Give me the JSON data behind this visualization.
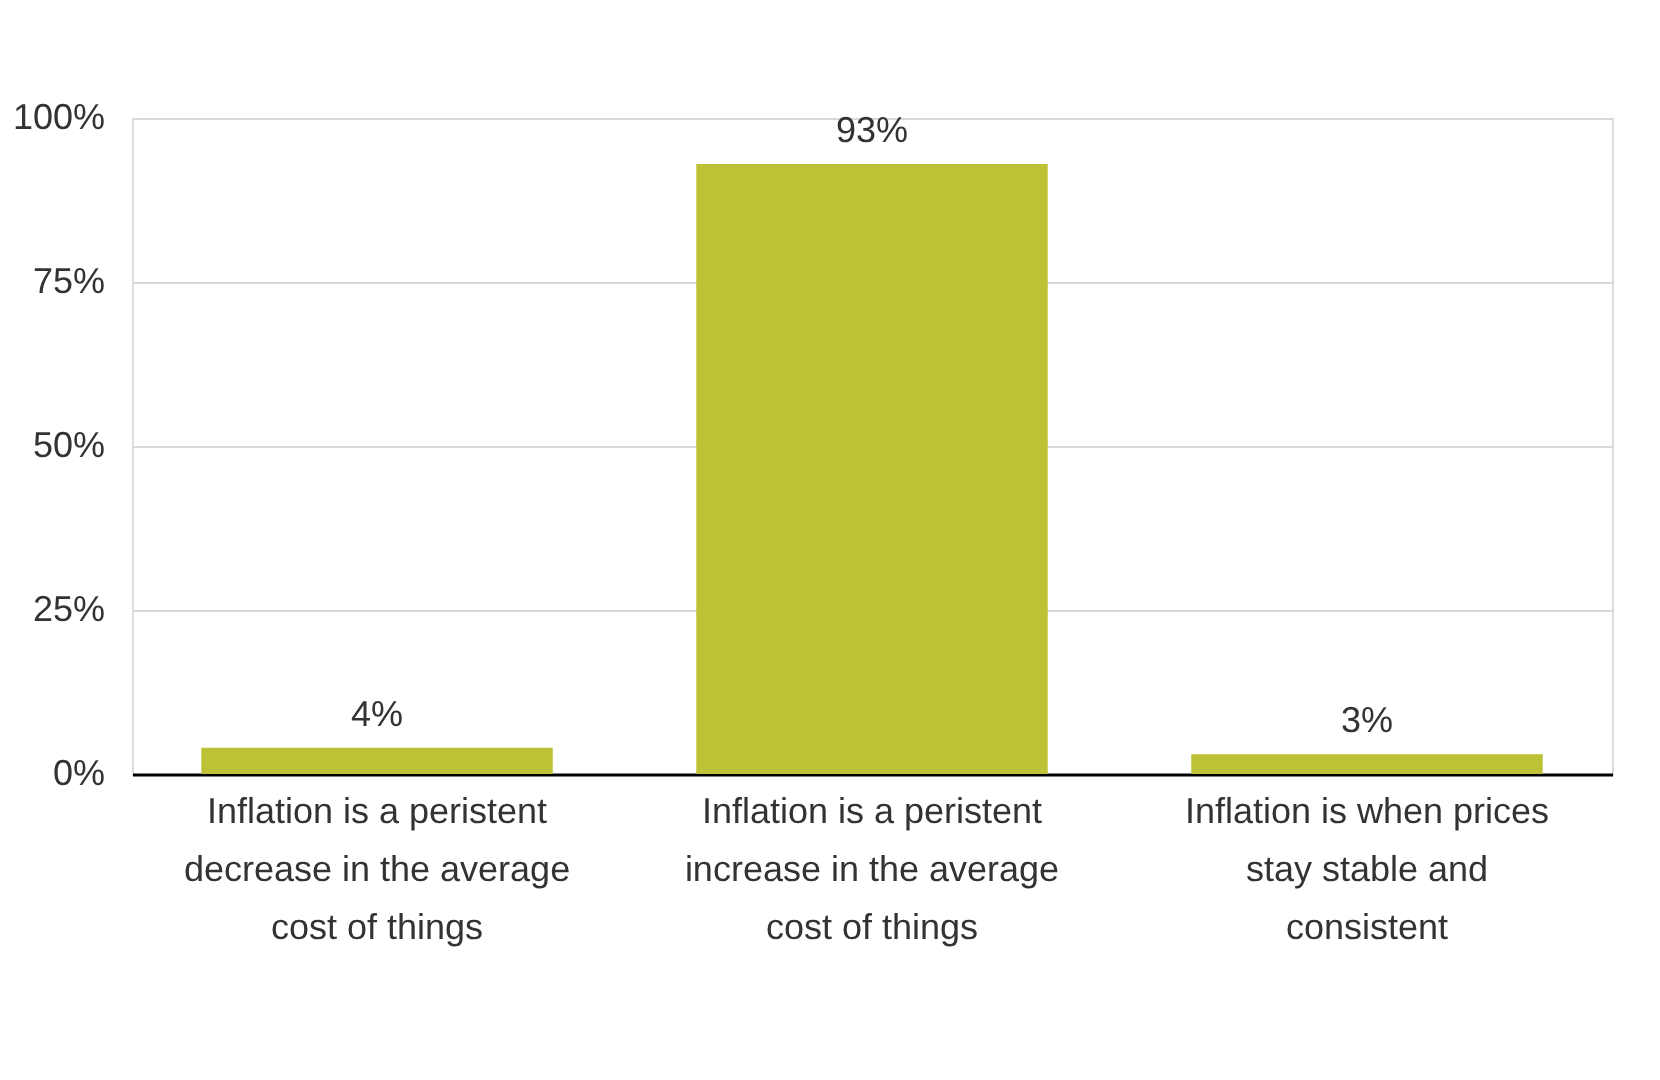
{
  "chart_data": {
    "type": "bar",
    "categories": [
      "Inflation is a peristent decrease in the average cost of things",
      "Inflation is a peristent increase in the average cost of things",
      "Inflation is when prices stay stable and consistent"
    ],
    "values": [
      4,
      93,
      3
    ],
    "value_labels": [
      "4%",
      "93%",
      "3%"
    ],
    "color": "#bdc135",
    "ylim": [
      0,
      100
    ],
    "yticks": [
      {
        "value": 0,
        "label": "0%"
      },
      {
        "value": 25,
        "label": "25%"
      },
      {
        "value": 50,
        "label": "50%"
      },
      {
        "value": 75,
        "label": "75%"
      },
      {
        "value": 100,
        "label": "100%"
      }
    ],
    "grid": "y"
  }
}
